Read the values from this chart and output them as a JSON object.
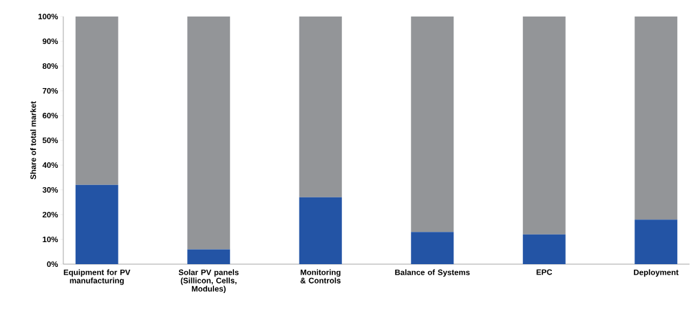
{
  "chart_data": {
    "type": "bar",
    "stacked": true,
    "ylabel": "Share of total market",
    "categories": [
      "Equipment for PV manufacturing",
      "Solar PV panels (Sillicon, Cells, Modules)",
      "Monitoring & Controls",
      "Balance of Systems",
      "EPC",
      "Deployment"
    ],
    "series": [
      {
        "color": "#2354a5",
        "values": [
          32,
          6,
          27,
          13,
          12,
          18
        ]
      },
      {
        "color": "#939598",
        "values": [
          68,
          94,
          73,
          87,
          88,
          82
        ]
      }
    ],
    "ylim": [
      0,
      100
    ],
    "yticks": [
      {
        "value": 0,
        "label": "0%"
      },
      {
        "value": 10,
        "label": "10%"
      },
      {
        "value": 20,
        "label": "20%"
      },
      {
        "value": 30,
        "label": "30%"
      },
      {
        "value": 40,
        "label": "40%"
      },
      {
        "value": 50,
        "label": "50%"
      },
      {
        "value": 60,
        "label": "60%"
      },
      {
        "value": 70,
        "label": "70%"
      },
      {
        "value": 80,
        "label": "80%"
      },
      {
        "value": 90,
        "label": "90%"
      },
      {
        "value": 100,
        "label": "100%"
      }
    ],
    "grid": false
  }
}
